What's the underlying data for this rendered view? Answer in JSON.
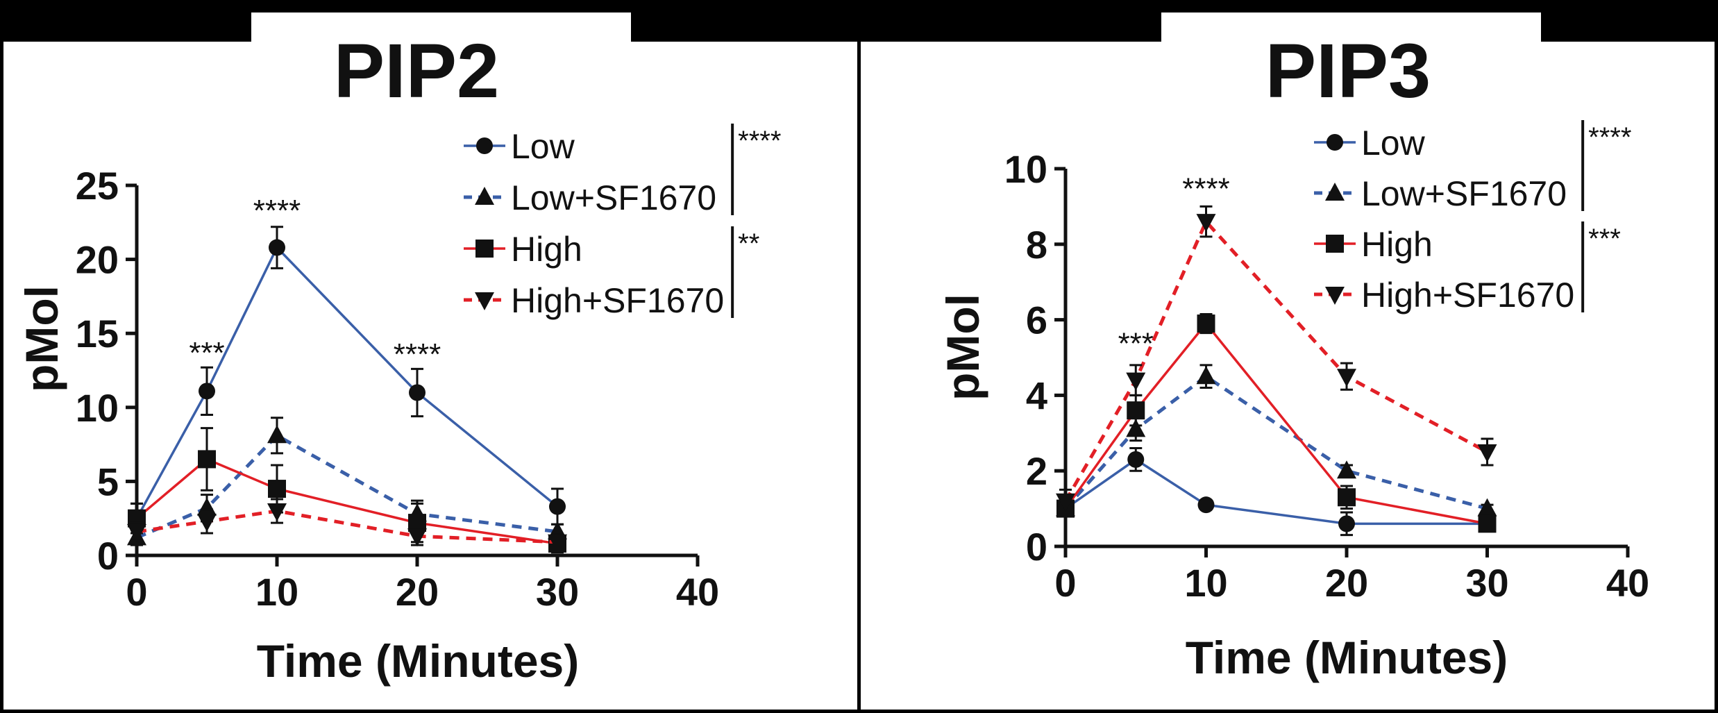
{
  "colors": {
    "background": "#000000",
    "panel": "#ffffff",
    "low": "#3a5fa8",
    "high": "#e21f26",
    "text": "#111111"
  },
  "chart_data": [
    {
      "type": "line",
      "title": "PIP2",
      "xlabel": "Time (Minutes)",
      "ylabel": "pMol",
      "xlim": [
        0,
        40
      ],
      "ylim": [
        0,
        25
      ],
      "xticks": [
        0,
        10,
        20,
        30,
        40
      ],
      "yticks": [
        0,
        5,
        10,
        15,
        20,
        25
      ],
      "x": [
        0,
        5,
        10,
        20,
        30
      ],
      "series": [
        {
          "name": "Low",
          "marker": "circle",
          "dash": "solid",
          "color": "#3a5fa8",
          "values": [
            2.5,
            11.1,
            20.8,
            11.0,
            3.3
          ],
          "errors": [
            1.0,
            1.6,
            1.4,
            1.6,
            1.2
          ]
        },
        {
          "name": "Low+SF1670",
          "marker": "triangle-up",
          "dash": "dashed",
          "color": "#3a5fa8",
          "values": [
            1.2,
            3.2,
            8.1,
            2.8,
            1.6
          ],
          "errors": [
            0.5,
            0.9,
            1.2,
            0.9,
            0.5
          ]
        },
        {
          "name": "High",
          "marker": "square",
          "dash": "solid",
          "color": "#e21f26",
          "values": [
            2.5,
            6.5,
            4.5,
            2.2,
            0.8
          ],
          "errors": [
            1.0,
            2.1,
            1.6,
            1.3,
            0.6
          ]
        },
        {
          "name": "High+SF1670",
          "marker": "triangle-down",
          "dash": "dashed",
          "color": "#e21f26",
          "values": [
            1.6,
            2.3,
            3.0,
            1.3,
            0.9
          ],
          "errors": [
            0.6,
            0.8,
            0.8,
            0.6,
            0.5
          ]
        }
      ],
      "annotations": [
        {
          "x": 5,
          "y": 13.0,
          "text": "***"
        },
        {
          "x": 10,
          "y": 22.6,
          "text": "****"
        },
        {
          "x": 20,
          "y": 12.9,
          "text": "****"
        }
      ],
      "legend": {
        "position": "top-right",
        "brackets": [
          {
            "series": [
              0,
              1
            ],
            "text": "****"
          },
          {
            "series": [
              2,
              3
            ],
            "text": "**"
          }
        ]
      }
    },
    {
      "type": "line",
      "title": "PIP3",
      "xlabel": "Time (Minutes)",
      "ylabel": "pMol",
      "xlim": [
        0,
        40
      ],
      "ylim": [
        0,
        10
      ],
      "xticks": [
        0,
        10,
        20,
        30,
        40
      ],
      "yticks": [
        0,
        2,
        4,
        6,
        8,
        10
      ],
      "x": [
        0,
        5,
        10,
        20,
        30
      ],
      "series": [
        {
          "name": "Low",
          "marker": "circle",
          "dash": "solid",
          "color": "#3a5fa8",
          "values": [
            1.0,
            2.3,
            1.1,
            0.6,
            0.6
          ],
          "errors": [
            0.2,
            0.3,
            0.1,
            0.3,
            0.1
          ]
        },
        {
          "name": "Low+SF1670",
          "marker": "triangle-up",
          "dash": "dashed",
          "color": "#3a5fa8",
          "values": [
            1.0,
            3.1,
            4.5,
            2.0,
            1.0
          ],
          "errors": [
            0.2,
            0.3,
            0.3,
            0.15,
            0.1
          ]
        },
        {
          "name": "High",
          "marker": "square",
          "dash": "solid",
          "color": "#e21f26",
          "values": [
            1.0,
            3.6,
            5.9,
            1.3,
            0.6
          ],
          "errors": [
            0.2,
            0.4,
            0.25,
            0.3,
            0.1
          ]
        },
        {
          "name": "High+SF1670",
          "marker": "triangle-down",
          "dash": "dashed",
          "color": "#e21f26",
          "values": [
            1.2,
            4.4,
            8.6,
            4.5,
            2.5
          ],
          "errors": [
            0.3,
            0.4,
            0.4,
            0.35,
            0.35
          ]
        }
      ],
      "annotations": [
        {
          "x": 5,
          "y": 5.1,
          "text": "***"
        },
        {
          "x": 10,
          "y": 9.2,
          "text": "****"
        }
      ],
      "legend": {
        "position": "top-right",
        "brackets": [
          {
            "series": [
              0,
              1
            ],
            "text": "****"
          },
          {
            "series": [
              2,
              3
            ],
            "text": "***"
          }
        ]
      }
    }
  ]
}
